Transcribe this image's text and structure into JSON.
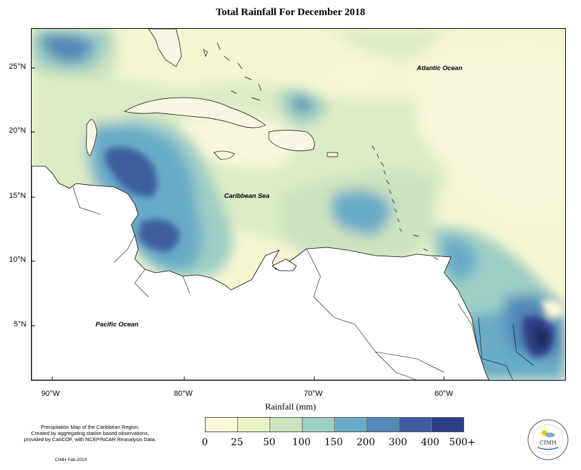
{
  "title": "Total Rainfall For December 2018",
  "map": {
    "ocean_labels": {
      "atlantic": "Atlantic Ocean",
      "caribbean": "Caribbean Sea",
      "pacific": "Pacific Ocean"
    },
    "lat_ticks": [
      "25°N",
      "20°N",
      "15°N",
      "10°N",
      "5°N"
    ],
    "lon_ticks": [
      "90°W",
      "80°W",
      "70°W",
      "60°W"
    ]
  },
  "x_axis_title": "Rainfall (mm)",
  "legend": {
    "labels": [
      "0",
      "25",
      "50",
      "100",
      "150",
      "200",
      "300",
      "400",
      "500+"
    ],
    "colors": [
      "#fbf8d9",
      "#e9f2c2",
      "#cde3bf",
      "#9dcec4",
      "#6aacc8",
      "#5289b7",
      "#3d5d9e",
      "#2d3f86",
      "#172a5a"
    ]
  },
  "note": "Precipitation Map of the Caribbean Region.\nCreated by aggregating station based observations,\nprovided by CariCOF, with NCEP/NCAR Reanalysis Data.",
  "credit": "CIMH Feb-2019",
  "logo": {
    "name": "CIMH"
  }
}
